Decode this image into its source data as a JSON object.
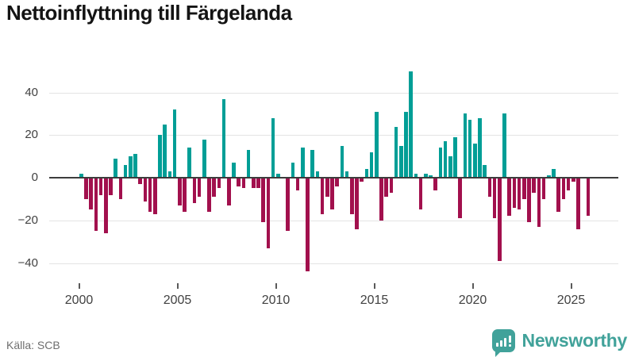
{
  "title": "Nettoinflyttning till Färgelanda",
  "source": "Källa: SCB",
  "logo": {
    "text": "Newsworthy",
    "icon": "newsworthy-speech-bubble-barchart-icon"
  },
  "colors": {
    "positive": "#009e96",
    "negative": "#a2104d",
    "logo_teal": "#41a29a",
    "axis_line": "#3d3d3d",
    "gridline": "#e4e4e4",
    "tick_label": "#414141",
    "source_text": "#6e6e6e",
    "title_text": "#141414"
  },
  "chart_data": {
    "type": "bar",
    "title": "Nettoinflyttning till Färgelanda",
    "xlabel": "",
    "ylabel": "",
    "frequency": "quarterly",
    "start_year": 2000,
    "start_quarter": 1,
    "y_ticks": [
      40,
      20,
      0,
      -20,
      -40
    ],
    "y_tick_labels": [
      "40",
      "20",
      "0",
      "−20",
      "−40"
    ],
    "x_tick_years": [
      2000,
      2005,
      2010,
      2015,
      2020,
      2025
    ],
    "x_tick_labels": [
      "2000",
      "2005",
      "2010",
      "2015",
      "2020",
      "2025"
    ],
    "ylim": [
      -50,
      52
    ],
    "grid": true,
    "legend": false,
    "values": [
      2,
      -10,
      -15,
      -25,
      -8,
      -26,
      -8,
      9,
      -10,
      6,
      10,
      11,
      -3,
      -11,
      -16,
      -17,
      20,
      25,
      3,
      32,
      -13,
      -16,
      14,
      -12,
      -9,
      18,
      -16,
      -9,
      -5,
      37,
      -13,
      7,
      -4,
      -5,
      13,
      -5,
      -5,
      -21,
      -33,
      28,
      2,
      0,
      -25,
      7,
      -6,
      14,
      -44,
      13,
      3,
      -17,
      -9,
      -15,
      -4,
      15,
      3,
      -17,
      -24,
      -2,
      4,
      12,
      31,
      -20,
      -9,
      -7,
      24,
      15,
      31,
      50,
      2,
      -15,
      2,
      1,
      -6,
      14,
      17,
      10,
      19,
      -19,
      30,
      27,
      16,
      28,
      6,
      -9,
      -19,
      -39,
      30,
      -18,
      -14,
      -15,
      -10,
      -21,
      -7,
      -23,
      -10,
      1,
      4,
      -16,
      -10,
      -6,
      -2,
      -24,
      0,
      -18
    ]
  }
}
